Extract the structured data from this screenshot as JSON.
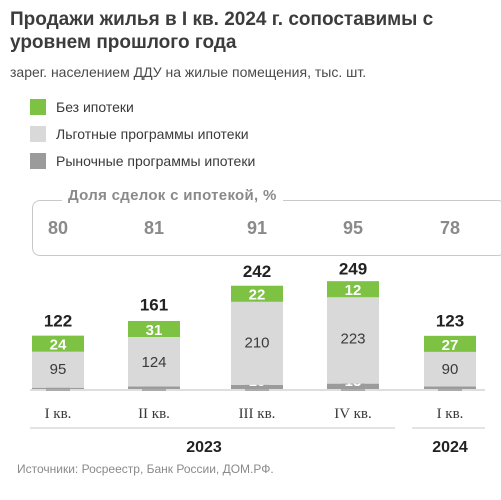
{
  "title": "Продажи жилья в I кв. 2024 г. сопоставимы с уровнем прошлого года",
  "subtitle": "зарег. населением ДДУ на жилые помещения, тыс. шт.",
  "legend": [
    {
      "label": "Без ипотеки",
      "color": "#7dc242"
    },
    {
      "label": "Льготные программы ипотеки",
      "color": "#d9d9d9"
    },
    {
      "label": "Рыночные программы ипотеки",
      "color": "#9b9b9b"
    }
  ],
  "mortgage_share": {
    "title": "Доля сделок с ипотекой, %",
    "values": [
      "80",
      "81",
      "91",
      "95",
      "78"
    ]
  },
  "chart_data": {
    "type": "bar",
    "stacked": true,
    "categories": [
      "I кв.",
      "II кв.",
      "III кв.",
      "IV кв.",
      "I кв."
    ],
    "year_groups": [
      {
        "label": "2023",
        "categories": [
          0,
          1,
          2,
          3
        ]
      },
      {
        "label": "2024",
        "categories": [
          4
        ]
      }
    ],
    "series": [
      {
        "name": "Рыночные программы ипотеки",
        "values": [
          3,
          6,
          10,
          13,
          6
        ],
        "color": "#9b9b9b"
      },
      {
        "name": "Льготные программы ипотеки",
        "values": [
          95,
          124,
          210,
          223,
          90
        ],
        "color": "#d9d9d9"
      },
      {
        "name": "Без ипотеки",
        "values": [
          24,
          31,
          22,
          12,
          27
        ],
        "color": "#7dc242"
      }
    ],
    "totals": [
      122,
      161,
      242,
      249,
      123
    ]
  },
  "source": "Источники: Росреестр, Банк России, ДОМ.РФ."
}
